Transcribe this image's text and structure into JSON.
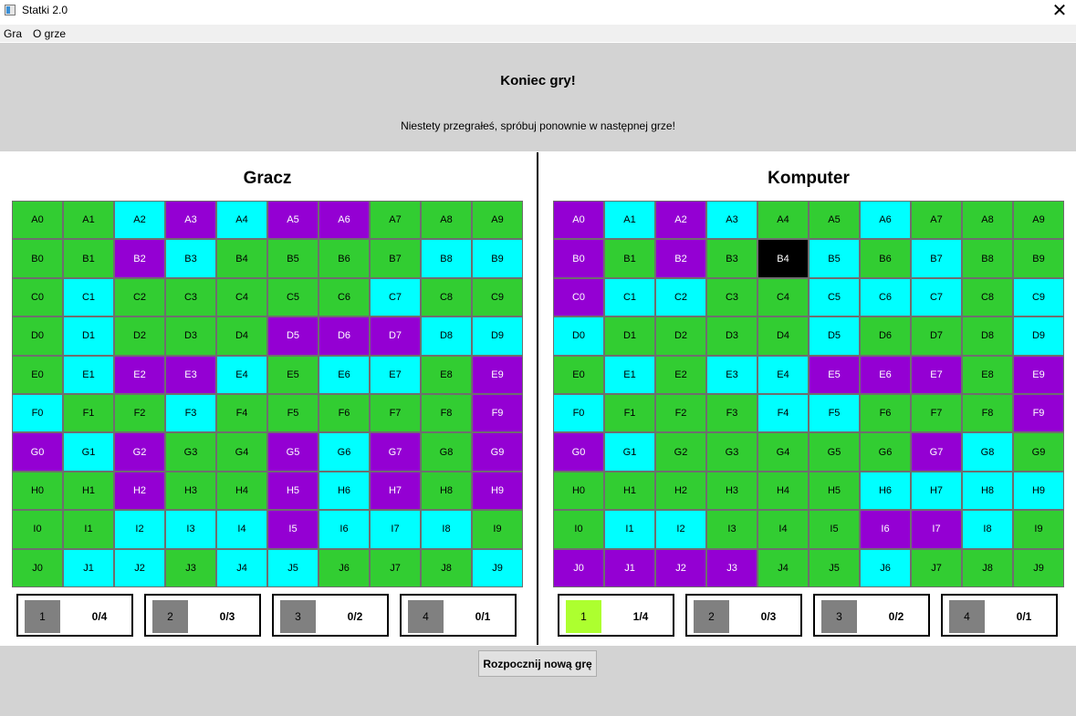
{
  "window": {
    "title": "Statki 2.0",
    "close_glyph": "✕",
    "icon": "app-icon"
  },
  "menu": [
    {
      "label": "Gra"
    },
    {
      "label": "O grze"
    }
  ],
  "message": {
    "title": "Koniec gry!",
    "body": "Niestety przegrałeś, spróbuj ponownie w następnej grze!"
  },
  "colors": {
    "water": "#00ffff",
    "empty": "#32cd32",
    "ship": "#9400d3",
    "selected": "#000000",
    "ship_counter": "#808080",
    "ship_counter_active": "#adff2f",
    "background": "#d3d3d3"
  },
  "legend_codes": {
    "g": "green",
    "c": "cyan",
    "p": "purple",
    "b": "black"
  },
  "rows": [
    "A",
    "B",
    "C",
    "D",
    "E",
    "F",
    "G",
    "H",
    "I",
    "J"
  ],
  "player": {
    "title": "Gracz",
    "grid": [
      "ggcpcppggg",
      "ggpcggggcc",
      "gcgggggcgg",
      "gcgggpppcc",
      "gcppcgccgp",
      "cggcgggggp",
      "pcpggpcpgp",
      "ggpggpcpgp",
      "ggcccpcccg",
      "gccgccgggc"
    ],
    "ships": [
      {
        "size": "1",
        "count": "0/4",
        "active": false
      },
      {
        "size": "2",
        "count": "0/3",
        "active": false
      },
      {
        "size": "3",
        "count": "0/2",
        "active": false
      },
      {
        "size": "4",
        "count": "0/1",
        "active": false
      }
    ]
  },
  "computer": {
    "title": "Komputer",
    "grid": [
      "pcpcggcggg",
      "pgpgbcgcgg",
      "pccggcccgc",
      "cggggcgggc",
      "gcgccpppgp",
      "cgggccgggp",
      "pcgggggpcg",
      "ggggggcccc",
      "gccgggppcg",
      "ppppggcggg"
    ],
    "ships": [
      {
        "size": "1",
        "count": "1/4",
        "active": true
      },
      {
        "size": "2",
        "count": "0/3",
        "active": false
      },
      {
        "size": "3",
        "count": "0/2",
        "active": false
      },
      {
        "size": "4",
        "count": "0/1",
        "active": false
      }
    ]
  },
  "new_game_label": "Rozpocznij nową grę"
}
